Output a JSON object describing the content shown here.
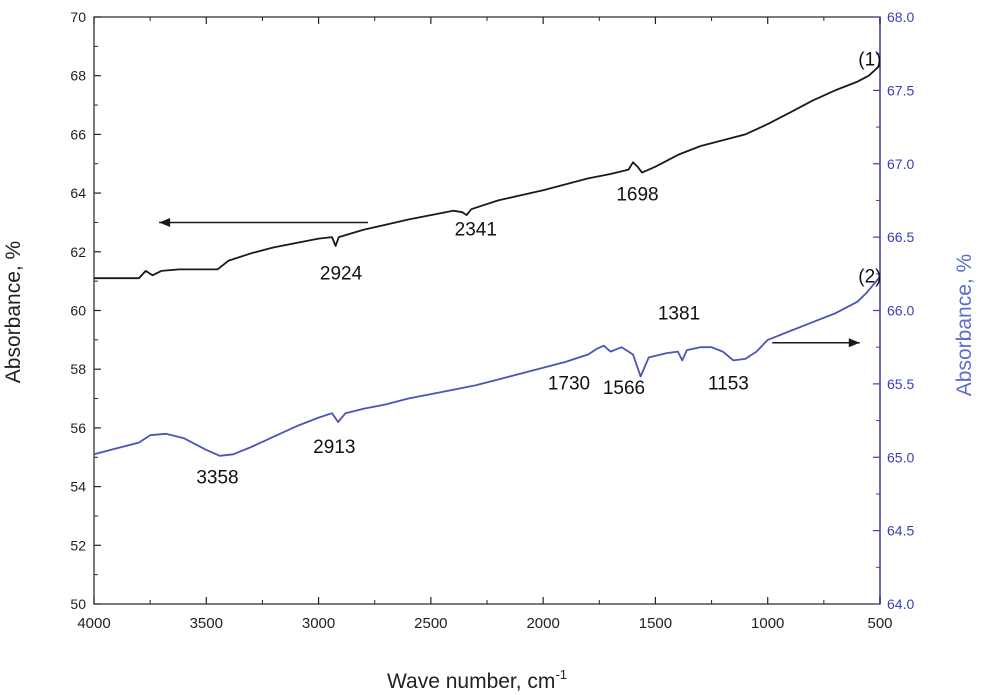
{
  "chart_data": {
    "type": "line",
    "xlabel": "Wave number, cm",
    "xlabel_superscript": "-1",
    "ylabel_left": "Absorbance, %",
    "ylabel_right": "Absorbance, %",
    "xlim": [
      4000,
      500
    ],
    "x_reversed": true,
    "ylim_left": [
      50,
      70
    ],
    "ylim_right": [
      64.0,
      68.0
    ],
    "x_ticks": [
      4000,
      3500,
      3000,
      2500,
      2000,
      1500,
      1000,
      500
    ],
    "y_left_ticks": [
      50,
      52,
      54,
      56,
      58,
      60,
      62,
      64,
      66,
      68,
      70
    ],
    "y_right_ticks": [
      "64.0",
      "64.5",
      "65.0",
      "65.5",
      "66.0",
      "66.5",
      "67.0",
      "67.5",
      "68.0"
    ],
    "grid": false,
    "colors": {
      "series1": "#1a1a1a",
      "series2": "#4a55b5",
      "right_axis": "#3b3fb0"
    },
    "series": [
      {
        "name": "(1)",
        "axis": "left",
        "points": [
          [
            4000,
            61.1
          ],
          [
            3800,
            61.1
          ],
          [
            3770,
            61.35
          ],
          [
            3740,
            61.2
          ],
          [
            3700,
            61.35
          ],
          [
            3620,
            61.4
          ],
          [
            3450,
            61.4
          ],
          [
            3400,
            61.7
          ],
          [
            3300,
            61.95
          ],
          [
            3200,
            62.15
          ],
          [
            3000,
            62.45
          ],
          [
            2940,
            62.5
          ],
          [
            2924,
            62.2
          ],
          [
            2910,
            62.5
          ],
          [
            2800,
            62.75
          ],
          [
            2600,
            63.1
          ],
          [
            2400,
            63.4
          ],
          [
            2360,
            63.35
          ],
          [
            2341,
            63.25
          ],
          [
            2320,
            63.45
          ],
          [
            2200,
            63.75
          ],
          [
            2000,
            64.1
          ],
          [
            1800,
            64.5
          ],
          [
            1700,
            64.65
          ],
          [
            1620,
            64.8
          ],
          [
            1600,
            65.05
          ],
          [
            1580,
            64.9
          ],
          [
            1560,
            64.7
          ],
          [
            1500,
            64.9
          ],
          [
            1400,
            65.3
          ],
          [
            1300,
            65.6
          ],
          [
            1200,
            65.8
          ],
          [
            1100,
            66.0
          ],
          [
            1000,
            66.35
          ],
          [
            900,
            66.75
          ],
          [
            800,
            67.15
          ],
          [
            700,
            67.5
          ],
          [
            600,
            67.8
          ],
          [
            550,
            68.0
          ],
          [
            500,
            68.35
          ]
        ]
      },
      {
        "name": "(2)",
        "axis": "right",
        "points": [
          [
            4000,
            65.02
          ],
          [
            3900,
            65.06
          ],
          [
            3800,
            65.1
          ],
          [
            3750,
            65.15
          ],
          [
            3680,
            65.16
          ],
          [
            3600,
            65.13
          ],
          [
            3500,
            65.05
          ],
          [
            3440,
            65.01
          ],
          [
            3380,
            65.02
          ],
          [
            3300,
            65.07
          ],
          [
            3200,
            65.14
          ],
          [
            3100,
            65.21
          ],
          [
            3000,
            65.27
          ],
          [
            2940,
            65.3
          ],
          [
            2913,
            65.24
          ],
          [
            2880,
            65.3
          ],
          [
            2800,
            65.33
          ],
          [
            2700,
            65.36
          ],
          [
            2600,
            65.4
          ],
          [
            2500,
            65.43
          ],
          [
            2400,
            65.46
          ],
          [
            2300,
            65.49
          ],
          [
            2200,
            65.53
          ],
          [
            2100,
            65.57
          ],
          [
            2000,
            65.61
          ],
          [
            1900,
            65.65
          ],
          [
            1800,
            65.7
          ],
          [
            1760,
            65.74
          ],
          [
            1730,
            65.76
          ],
          [
            1700,
            65.72
          ],
          [
            1650,
            65.75
          ],
          [
            1600,
            65.7
          ],
          [
            1566,
            65.55
          ],
          [
            1530,
            65.68
          ],
          [
            1450,
            65.71
          ],
          [
            1400,
            65.72
          ],
          [
            1381,
            65.66
          ],
          [
            1360,
            65.73
          ],
          [
            1300,
            65.75
          ],
          [
            1250,
            65.75
          ],
          [
            1200,
            65.72
          ],
          [
            1153,
            65.66
          ],
          [
            1100,
            65.67
          ],
          [
            1050,
            65.72
          ],
          [
            1000,
            65.8
          ],
          [
            900,
            65.86
          ],
          [
            800,
            65.92
          ],
          [
            700,
            65.98
          ],
          [
            600,
            66.06
          ],
          [
            560,
            66.12
          ],
          [
            500,
            66.23
          ]
        ]
      }
    ],
    "annotations": [
      {
        "text": "(1)",
        "x": 545,
        "y_left": 68.35
      },
      {
        "text": "2924",
        "x": 2900,
        "y_left": 61.05
      },
      {
        "text": "2341",
        "x": 2300,
        "y_left": 62.55
      },
      {
        "text": "1698",
        "x": 1580,
        "y_left": 63.75
      },
      {
        "text": "(2)",
        "x": 545,
        "y_left": 60.95
      },
      {
        "text": "1381",
        "x": 1395,
        "y_left": 59.7
      },
      {
        "text": "1730",
        "x": 1885,
        "y_left": 57.3
      },
      {
        "text": "1566",
        "x": 1640,
        "y_left": 57.15
      },
      {
        "text": "1153",
        "x": 1175,
        "y_left": 57.3
      },
      {
        "text": "2913",
        "x": 2930,
        "y_left": 55.15
      },
      {
        "text": "3358",
        "x": 3450,
        "y_left": 54.1
      }
    ],
    "arrows": [
      {
        "direction": "left",
        "x_from": 2780,
        "x_to": 3710,
        "y_left": 63.0,
        "color": "#1a1a1a"
      },
      {
        "direction": "right",
        "x_from": 980,
        "x_to": 590,
        "y_left": 58.9,
        "color": "#1a1a1a"
      }
    ]
  }
}
